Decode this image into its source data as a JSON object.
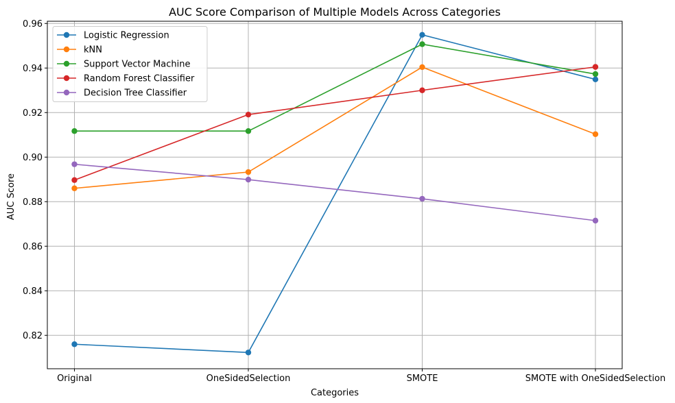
{
  "chart_data": {
    "type": "line",
    "title": "AUC Score Comparison of Multiple Models Across Categories",
    "xlabel": "Categories",
    "ylabel": "AUC Score",
    "categories": [
      "Original",
      "OneSidedSelection",
      "SMOTE",
      "SMOTE with OneSidedSelection"
    ],
    "ylim": [
      0.805,
      0.961
    ],
    "yticks": [
      "0.82",
      "0.84",
      "0.86",
      "0.88",
      "0.90",
      "0.92",
      "0.94",
      "0.96"
    ],
    "grid": true,
    "legend_position": "upper-left",
    "series": [
      {
        "name": "Logistic Regression",
        "color": "#1f77b4",
        "values": [
          0.816,
          0.8123,
          0.9549,
          0.9349
        ]
      },
      {
        "name": "kNN",
        "color": "#ff7f0e",
        "values": [
          0.886,
          0.8933,
          0.9404,
          0.9103
        ]
      },
      {
        "name": "Support Vector Machine",
        "color": "#2ca02c",
        "values": [
          0.9117,
          0.9117,
          0.9507,
          0.9373
        ]
      },
      {
        "name": "Random Forest Classifier",
        "color": "#d62728",
        "values": [
          0.8897,
          0.9191,
          0.93,
          0.9405
        ]
      },
      {
        "name": "Decision Tree Classifier",
        "color": "#9467bd",
        "values": [
          0.8968,
          0.8899,
          0.8813,
          0.8715
        ]
      }
    ]
  }
}
